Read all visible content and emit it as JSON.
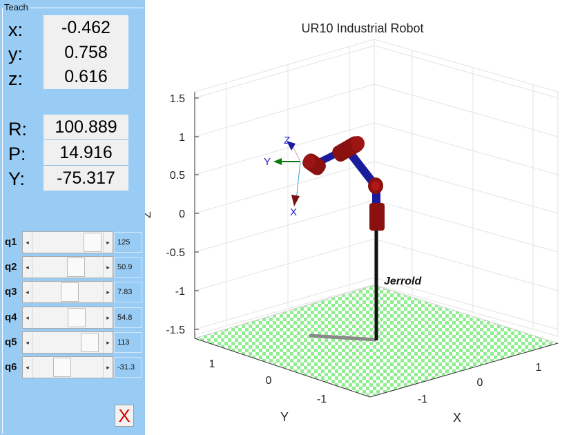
{
  "teach": {
    "legend": "Teach",
    "position": [
      {
        "label": "x:",
        "value": "-0.462"
      },
      {
        "label": "y:",
        "value": "0.758"
      },
      {
        "label": "z:",
        "value": "0.616"
      }
    ],
    "orientation": [
      {
        "label": "R:",
        "value": "100.889"
      },
      {
        "label": "P:",
        "value": "14.916"
      },
      {
        "label": "Y:",
        "value": "-75.317"
      }
    ],
    "joints": [
      {
        "label": "q1",
        "value": "125",
        "slider_fraction": 0.95
      },
      {
        "label": "q2",
        "value": "50.9",
        "slider_fraction": 0.64
      },
      {
        "label": "q3",
        "value": "7.83",
        "slider_fraction": 0.52
      },
      {
        "label": "q4",
        "value": "54.8",
        "slider_fraction": 0.65
      },
      {
        "label": "q5",
        "value": "113",
        "slider_fraction": 0.9
      },
      {
        "label": "q6",
        "value": "-31.3",
        "slider_fraction": 0.38
      }
    ],
    "close_label": "X"
  },
  "plot": {
    "title": "UR10 Industrial Robot",
    "z_ticks": [
      "1.5",
      "1",
      "0.5",
      "0",
      "-0.5",
      "-1",
      "-1.5"
    ],
    "y_ticks": [
      "1",
      "0",
      "-1"
    ],
    "x_ticks": [
      "-1",
      "0",
      "1"
    ],
    "x_axis_label": "X",
    "y_axis_label": "Y",
    "z_axis_label": "Z",
    "robot_name": "Jerrold",
    "frame_labels": {
      "x": "X",
      "y": "Y",
      "z": "Z"
    },
    "colors": {
      "panel": "#99ccf5",
      "link": "#1a1a9c",
      "joint": "#8b1010",
      "floor_a": "#90ee90",
      "floor_b": "#ffffff",
      "close_x": "#e00000"
    }
  }
}
